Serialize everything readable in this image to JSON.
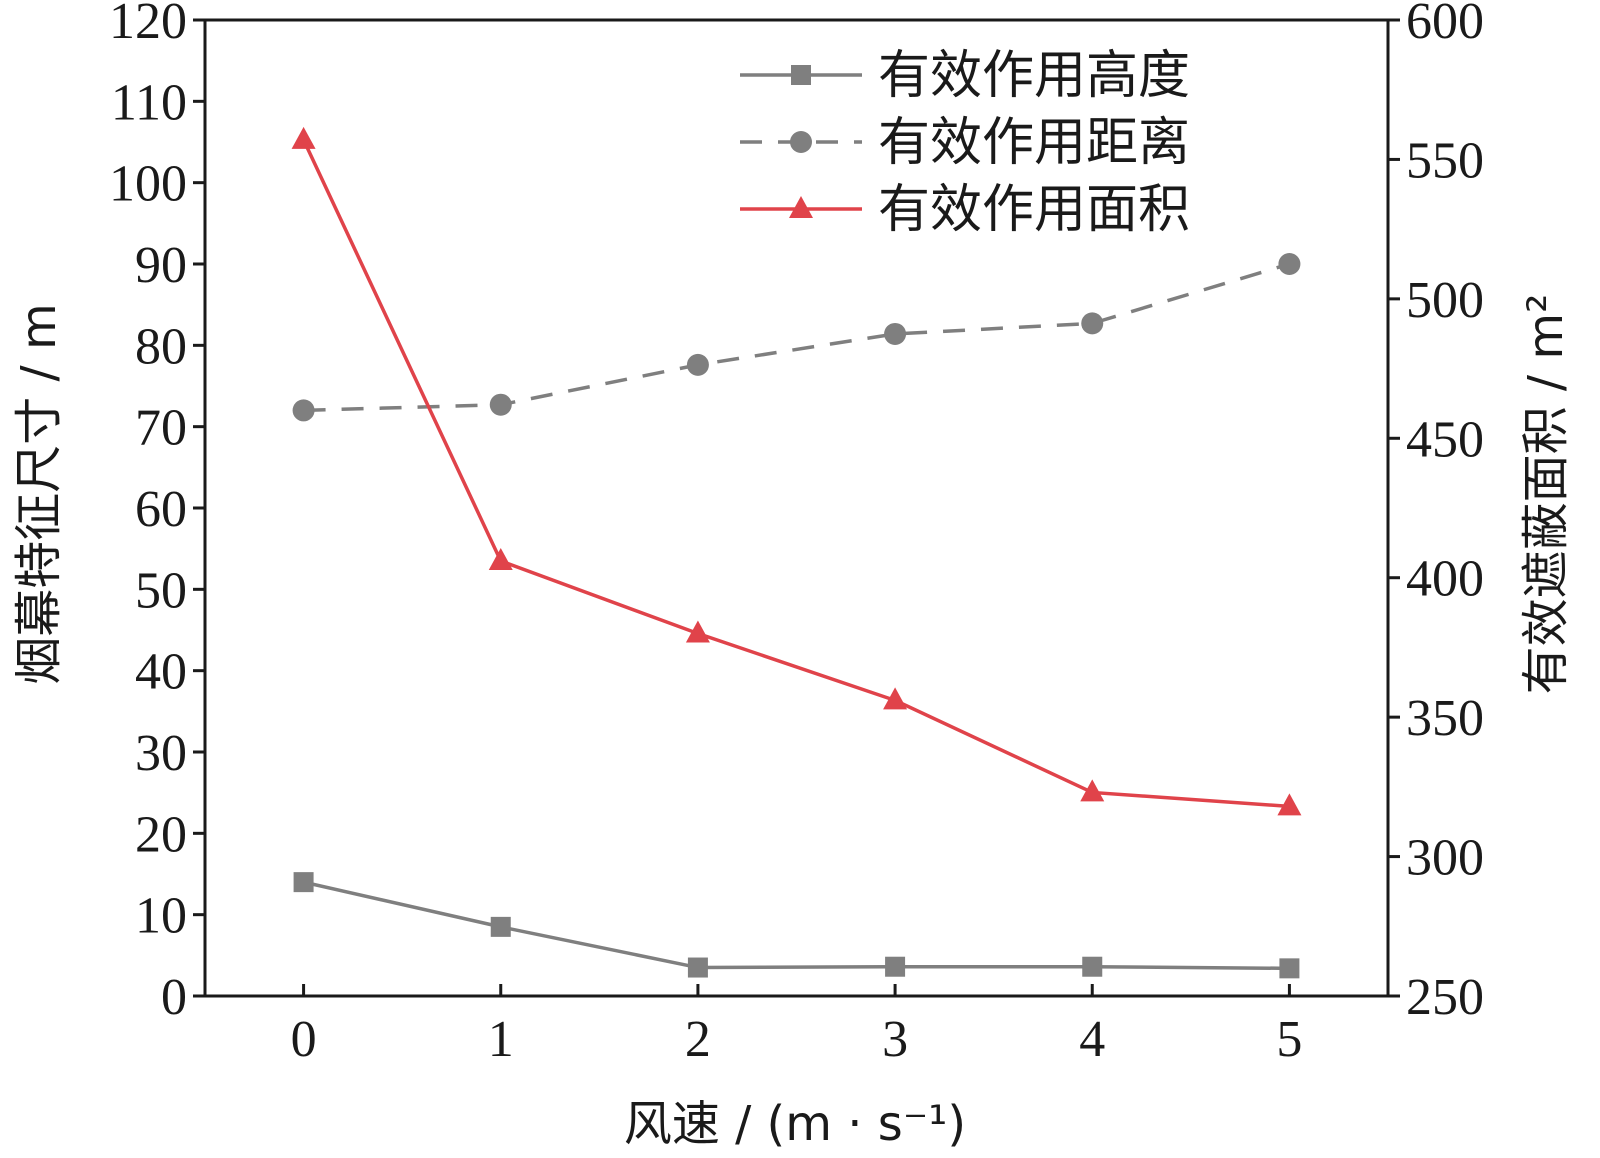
{
  "chart_data": {
    "type": "line",
    "xlabel": "风速 / (m · s⁻¹)",
    "ylabel_left": "烟幕特征尺寸 / m",
    "ylabel_right": "有效遮蔽面积 / m²",
    "x": [
      0,
      1,
      2,
      3,
      4,
      5
    ],
    "x_ticks": [
      "0",
      "1",
      "2",
      "3",
      "4",
      "5"
    ],
    "xlim": [
      -0.5,
      5.5
    ],
    "ylim_left": [
      0,
      120
    ],
    "ylim_right": [
      250,
      600
    ],
    "y_ticks_left": [
      "0",
      "10",
      "20",
      "30",
      "40",
      "50",
      "60",
      "70",
      "80",
      "90",
      "100",
      "110",
      "120"
    ],
    "y_ticks_right": [
      "250",
      "300",
      "350",
      "400",
      "450",
      "500",
      "550",
      "600"
    ],
    "legend_position": "top-right",
    "grid": false,
    "series": [
      {
        "name": "有效作用高度",
        "axis": "left",
        "values": [
          14,
          8.5,
          3.5,
          3.6,
          3.6,
          3.4
        ],
        "color": "#7f7f7f",
        "marker": "square",
        "line_style": "solid"
      },
      {
        "name": "有效作用距离",
        "axis": "left",
        "values": [
          72,
          72.7,
          77.6,
          81.4,
          82.7,
          90
        ],
        "color": "#7f7f7f",
        "marker": "circle",
        "line_style": "dashed"
      },
      {
        "name": "有效作用面积",
        "axis": "right",
        "values": [
          557,
          406,
          380,
          356,
          323,
          318
        ],
        "color": "#e0434a",
        "marker": "triangle",
        "line_style": "solid"
      }
    ]
  }
}
